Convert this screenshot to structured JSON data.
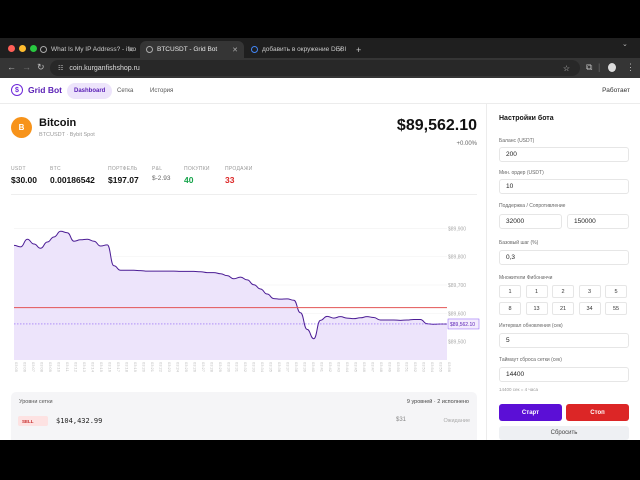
{
  "browser": {
    "tabs": [
      {
        "title": "What Is My IP Address? - ifco",
        "active": false
      },
      {
        "title": "BTCUSDT - Grid Bot",
        "active": true
      },
      {
        "title": "добавить в окружение DEBI",
        "active": false
      }
    ],
    "new_tab": "+",
    "url": "coin.kurganfishshop.ru"
  },
  "app": {
    "logo": "Grid Bot",
    "nav": [
      {
        "label": "Dashboard",
        "active": true
      },
      {
        "label": "Сетка",
        "active": false
      },
      {
        "label": "История",
        "active": false
      }
    ],
    "status": "Работает"
  },
  "coin": {
    "icon": "B",
    "name": "Bitcoin",
    "subtitle": "BTCUSDT · Bybit Spot",
    "price": "$89,562.10",
    "change": "+0.00%"
  },
  "stats": [
    {
      "label": "USDT",
      "value": "$30.00",
      "color": "#111111"
    },
    {
      "label": "BTC",
      "value": "0.00186542",
      "color": "#111111"
    },
    {
      "label": "ПОРТФЕЛЬ",
      "value": "$197.07",
      "color": "#111111"
    },
    {
      "label": "P&L",
      "value": "$-2.93",
      "color": "#666666"
    },
    {
      "label": "ПОКУПКИ",
      "value": "40",
      "color": "#16a34a"
    },
    {
      "label": "ПРОДАЖИ",
      "value": "33",
      "color": "#dc2626"
    }
  ],
  "chart_data": {
    "type": "area",
    "title": "",
    "y_ticks": [
      "$89,900",
      "$89,800",
      "$89,700",
      "$89,600",
      "$89,500"
    ],
    "ylim": [
      89470,
      89930
    ],
    "current_price_label": "$89,562.10",
    "reference_line_red": 89620,
    "reference_line_dashed": 89562.1,
    "series": [
      {
        "name": "BTCUSDT",
        "values": [
          89840,
          89835,
          89862,
          89845,
          89830,
          89852,
          89870,
          89890,
          89885,
          89855,
          89860,
          89862,
          89855,
          89838,
          89842,
          89768,
          89752,
          89752,
          89752,
          89751,
          89749,
          89749,
          89749,
          89749,
          89749,
          89748,
          89748,
          89748,
          89747,
          89744,
          89744,
          89740,
          89733,
          89722,
          89728,
          89718,
          89701,
          89686,
          89668,
          89652,
          89650,
          89651,
          89646,
          89602,
          89543,
          89510,
          89575,
          89589,
          89583,
          89588,
          89583,
          89581,
          89584,
          89588,
          89585,
          89576,
          89576,
          89576,
          89575,
          89576,
          89578,
          89578,
          89563,
          89561,
          89562,
          89562
        ]
      }
    ],
    "x_labels_note": "rotated time labels, illegible at source resolution",
    "grid": true,
    "line_color": "#4c1d95",
    "fill_color": "#ede4fb"
  },
  "grid_levels": {
    "title": "Уровни сетки",
    "summary": "9 уровней · 2 исполнено",
    "rows": [
      {
        "side": "SELL",
        "price": "$104,432.99",
        "amount": "$31",
        "status": "Ожидание"
      }
    ]
  },
  "settings": {
    "title": "Настройки бота",
    "balance_label": "Баланс (USDT)",
    "balance": "200",
    "min_order_label": "Мин. ордер (USDT)",
    "min_order": "10",
    "sr_label": "Поддержка / Сопротивление",
    "support": "32000",
    "resistance": "150000",
    "step_label": "Базовый шаг (%)",
    "step": "0,3",
    "fib_label": "Множители Фибоначчи",
    "fib": [
      "1",
      "1",
      "2",
      "3",
      "5",
      "8",
      "13",
      "21",
      "34",
      "55"
    ],
    "interval_label": "Интервал обновления (сек)",
    "interval": "5",
    "timeout_label": "Таймаут сброса сетки (сек)",
    "timeout": "14400",
    "timeout_hint": "14400 сек = 4 часа",
    "start": "Старт",
    "stop": "Стоп",
    "reset": "Сбросить",
    "start_color": "#5b0fd6",
    "stop_color": "#dc2626"
  }
}
